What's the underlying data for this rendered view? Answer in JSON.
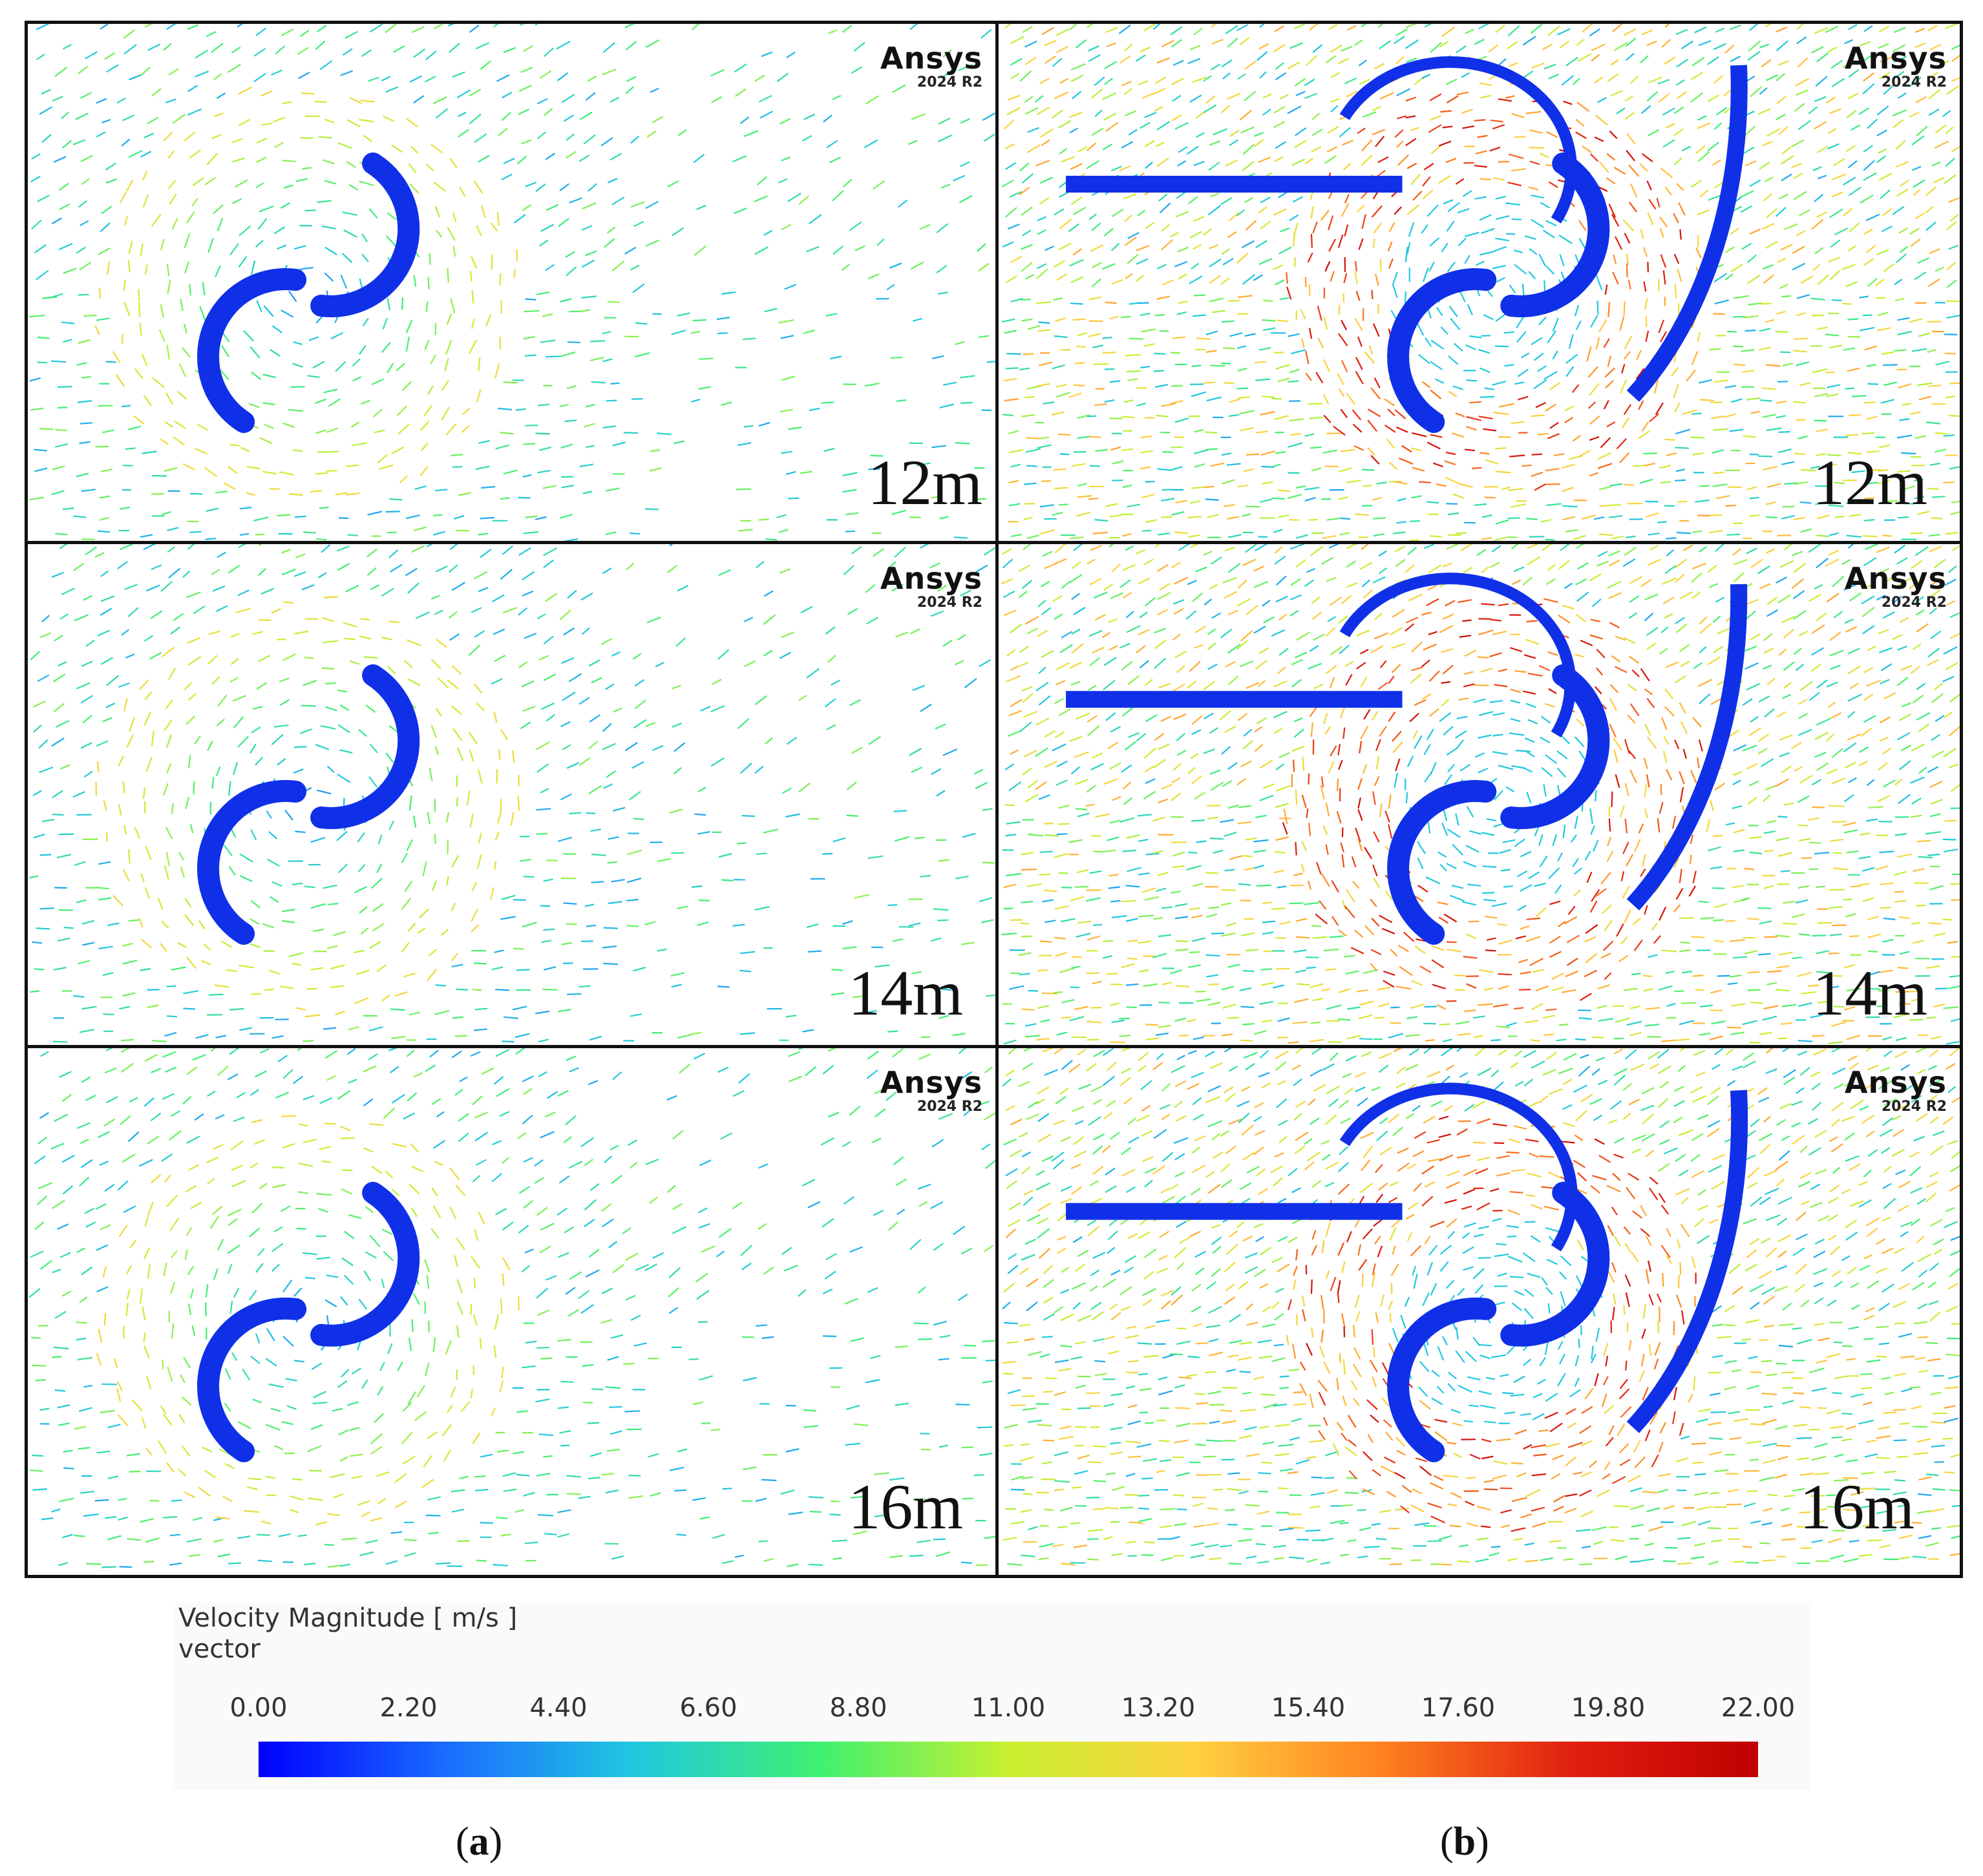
{
  "watermark": {
    "brand": "Ansys",
    "version": "2024 R2"
  },
  "panels": [
    {
      "column": "a",
      "distance": "12m",
      "cases": "single-rotor"
    },
    {
      "column": "b",
      "distance": "12m",
      "cases": "rotor-with-deflector"
    },
    {
      "column": "a",
      "distance": "14m",
      "cases": "single-rotor"
    },
    {
      "column": "b",
      "distance": "14m",
      "cases": "rotor-with-deflector"
    },
    {
      "column": "a",
      "distance": "16m",
      "cases": "single-rotor"
    },
    {
      "column": "b",
      "distance": "16m",
      "cases": "rotor-with-deflector"
    }
  ],
  "legend": {
    "title_line1": "Velocity Magnitude [ m/s ]",
    "title_line2": "vector",
    "ticks": [
      "0.00",
      "2.20",
      "4.40",
      "6.60",
      "8.80",
      "11.00",
      "13.20",
      "15.40",
      "17.60",
      "19.80",
      "22.00"
    ],
    "range": [
      0,
      22
    ],
    "colormap": [
      "#0000ff",
      "#1a6cff",
      "#20c8e0",
      "#40f070",
      "#c8f030",
      "#ffd040",
      "#ff8020",
      "#e02010",
      "#c00000"
    ]
  },
  "captions": {
    "a_letter": "a",
    "b_letter": "b",
    "open": "(",
    "close": ")"
  }
}
